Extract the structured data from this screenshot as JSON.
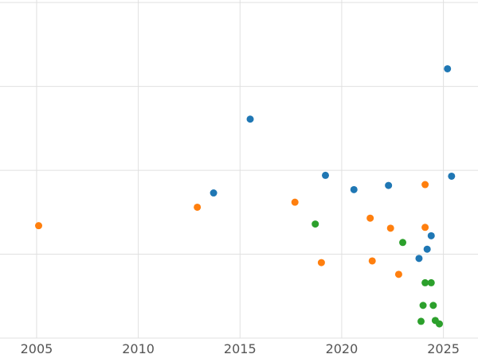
{
  "chart_data": {
    "type": "scatter",
    "title": "",
    "xlabel": "",
    "ylabel": "",
    "grid": true,
    "legend": "none",
    "xlim": [
      2003.2,
      2026.7
    ],
    "ylim": [
      0,
      4.03
    ],
    "x_ticks": [
      2005,
      2010,
      2015,
      2020,
      2025
    ],
    "y_gridlines": [
      0,
      1,
      2,
      3,
      4
    ],
    "gridline_color": "#e0e0e0",
    "tick_label_color": "#555555",
    "marker_radius": 4.5,
    "series": [
      {
        "name": "blue-series",
        "color": "#1f77b4",
        "points": [
          [
            2013.7,
            1.73
          ],
          [
            2015.5,
            2.61
          ],
          [
            2019.2,
            1.94
          ],
          [
            2020.6,
            1.77
          ],
          [
            2022.3,
            1.82
          ],
          [
            2023.8,
            0.95
          ],
          [
            2024.2,
            1.06
          ],
          [
            2024.4,
            1.22
          ],
          [
            2025.2,
            3.21
          ],
          [
            2025.4,
            1.93
          ]
        ]
      },
      {
        "name": "orange-series",
        "color": "#ff7f0e",
        "points": [
          [
            2005.1,
            1.34
          ],
          [
            2012.9,
            1.56
          ],
          [
            2017.7,
            1.62
          ],
          [
            2019.0,
            0.9
          ],
          [
            2021.4,
            1.43
          ],
          [
            2021.5,
            0.92
          ],
          [
            2022.4,
            1.31
          ],
          [
            2022.8,
            0.76
          ],
          [
            2024.1,
            1.83
          ],
          [
            2024.1,
            1.32
          ]
        ]
      },
      {
        "name": "green-series",
        "color": "#2ca02c",
        "points": [
          [
            2018.7,
            1.36
          ],
          [
            2023.0,
            1.14
          ],
          [
            2024.1,
            0.66
          ],
          [
            2024.4,
            0.66
          ],
          [
            2024.0,
            0.39
          ],
          [
            2024.5,
            0.39
          ],
          [
            2023.9,
            0.2
          ],
          [
            2024.6,
            0.21
          ],
          [
            2024.8,
            0.17
          ]
        ]
      }
    ]
  }
}
